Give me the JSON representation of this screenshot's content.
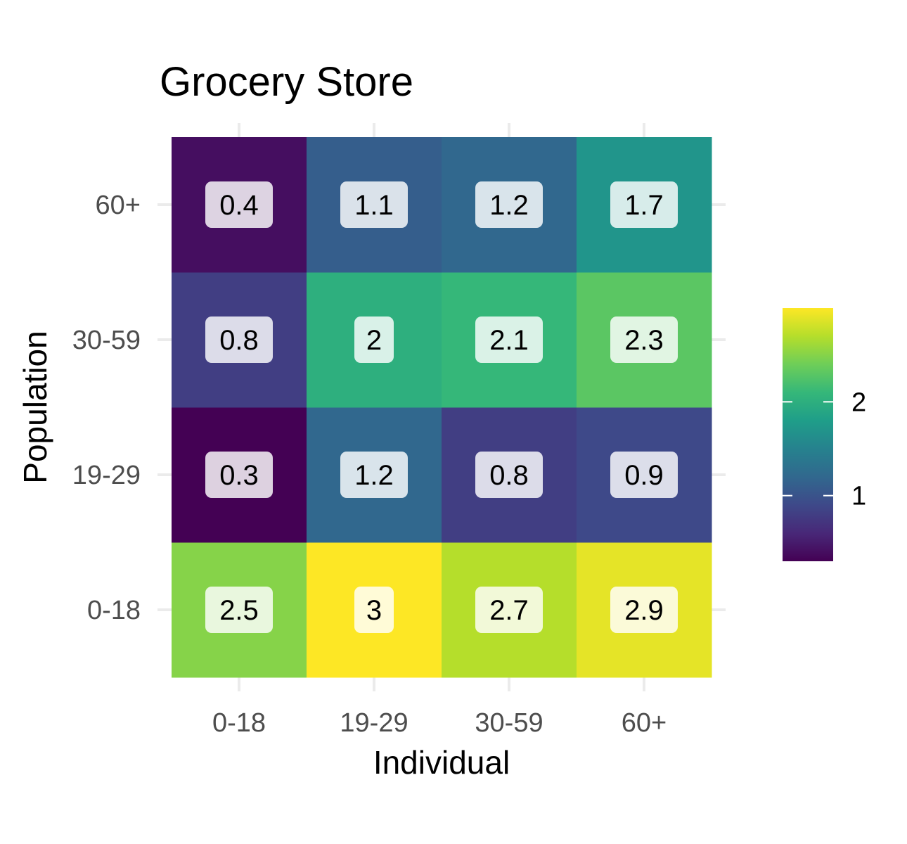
{
  "chart_data": {
    "type": "heatmap",
    "title": "Grocery Store",
    "xlabel": "Individual",
    "ylabel": "Population",
    "x_categories": [
      "0-18",
      "19-29",
      "30-59",
      "60+"
    ],
    "y_categories": [
      "0-18",
      "19-29",
      "30-59",
      "60+"
    ],
    "values": [
      [
        2.5,
        3,
        2.7,
        2.9
      ],
      [
        0.3,
        1.2,
        0.8,
        0.9
      ],
      [
        0.8,
        2,
        2.1,
        2.3
      ],
      [
        0.4,
        1.1,
        1.2,
        1.7
      ]
    ],
    "value_labels": [
      [
        "2.5",
        "3",
        "2.7",
        "2.9"
      ],
      [
        "0.3",
        "1.2",
        "0.8",
        "0.9"
      ],
      [
        "0.8",
        "2",
        "2.1",
        "2.3"
      ],
      [
        "0.4",
        "1.1",
        "1.2",
        "1.7"
      ]
    ],
    "color_scale": {
      "name": "viridis",
      "range": [
        0.3,
        3
      ],
      "stops": [
        "#440154",
        "#482878",
        "#3e4989",
        "#31688e",
        "#26828e",
        "#1f9e89",
        "#35b779",
        "#6ece58",
        "#b5de2b",
        "#fde725"
      ],
      "ticks": [
        1,
        2
      ],
      "tick_labels": [
        "1",
        "2"
      ]
    },
    "grid": true,
    "legend": "right"
  }
}
